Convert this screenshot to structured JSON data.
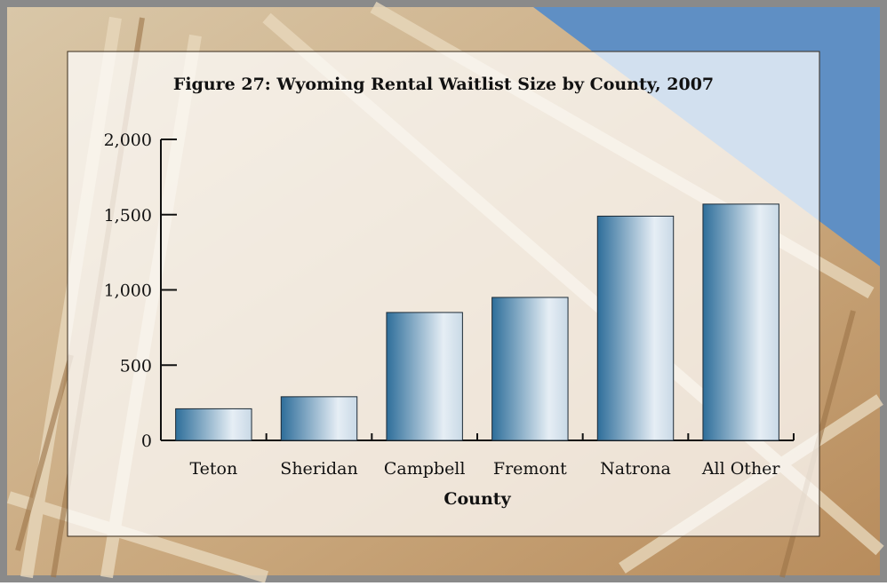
{
  "chart_data": {
    "type": "bar",
    "title": "Figure 27: Wyoming Rental Waitlist Size by County, 2007",
    "x_label": "County",
    "categories": [
      "Teton",
      "Sheridan",
      "Campbell",
      "Fremont",
      "Natrona",
      "All Other"
    ],
    "values": [
      210,
      290,
      850,
      950,
      1490,
      1570
    ],
    "color": "#2e6e9a",
    "ylim": [
      0,
      2000
    ],
    "yticks": [
      0,
      500,
      {
        "value": 1000,
        "label": "1,000"
      },
      {
        "value": 1500,
        "label": "1,500"
      },
      {
        "value": 2000,
        "label": "2,000"
      }
    ],
    "grid": false
  }
}
